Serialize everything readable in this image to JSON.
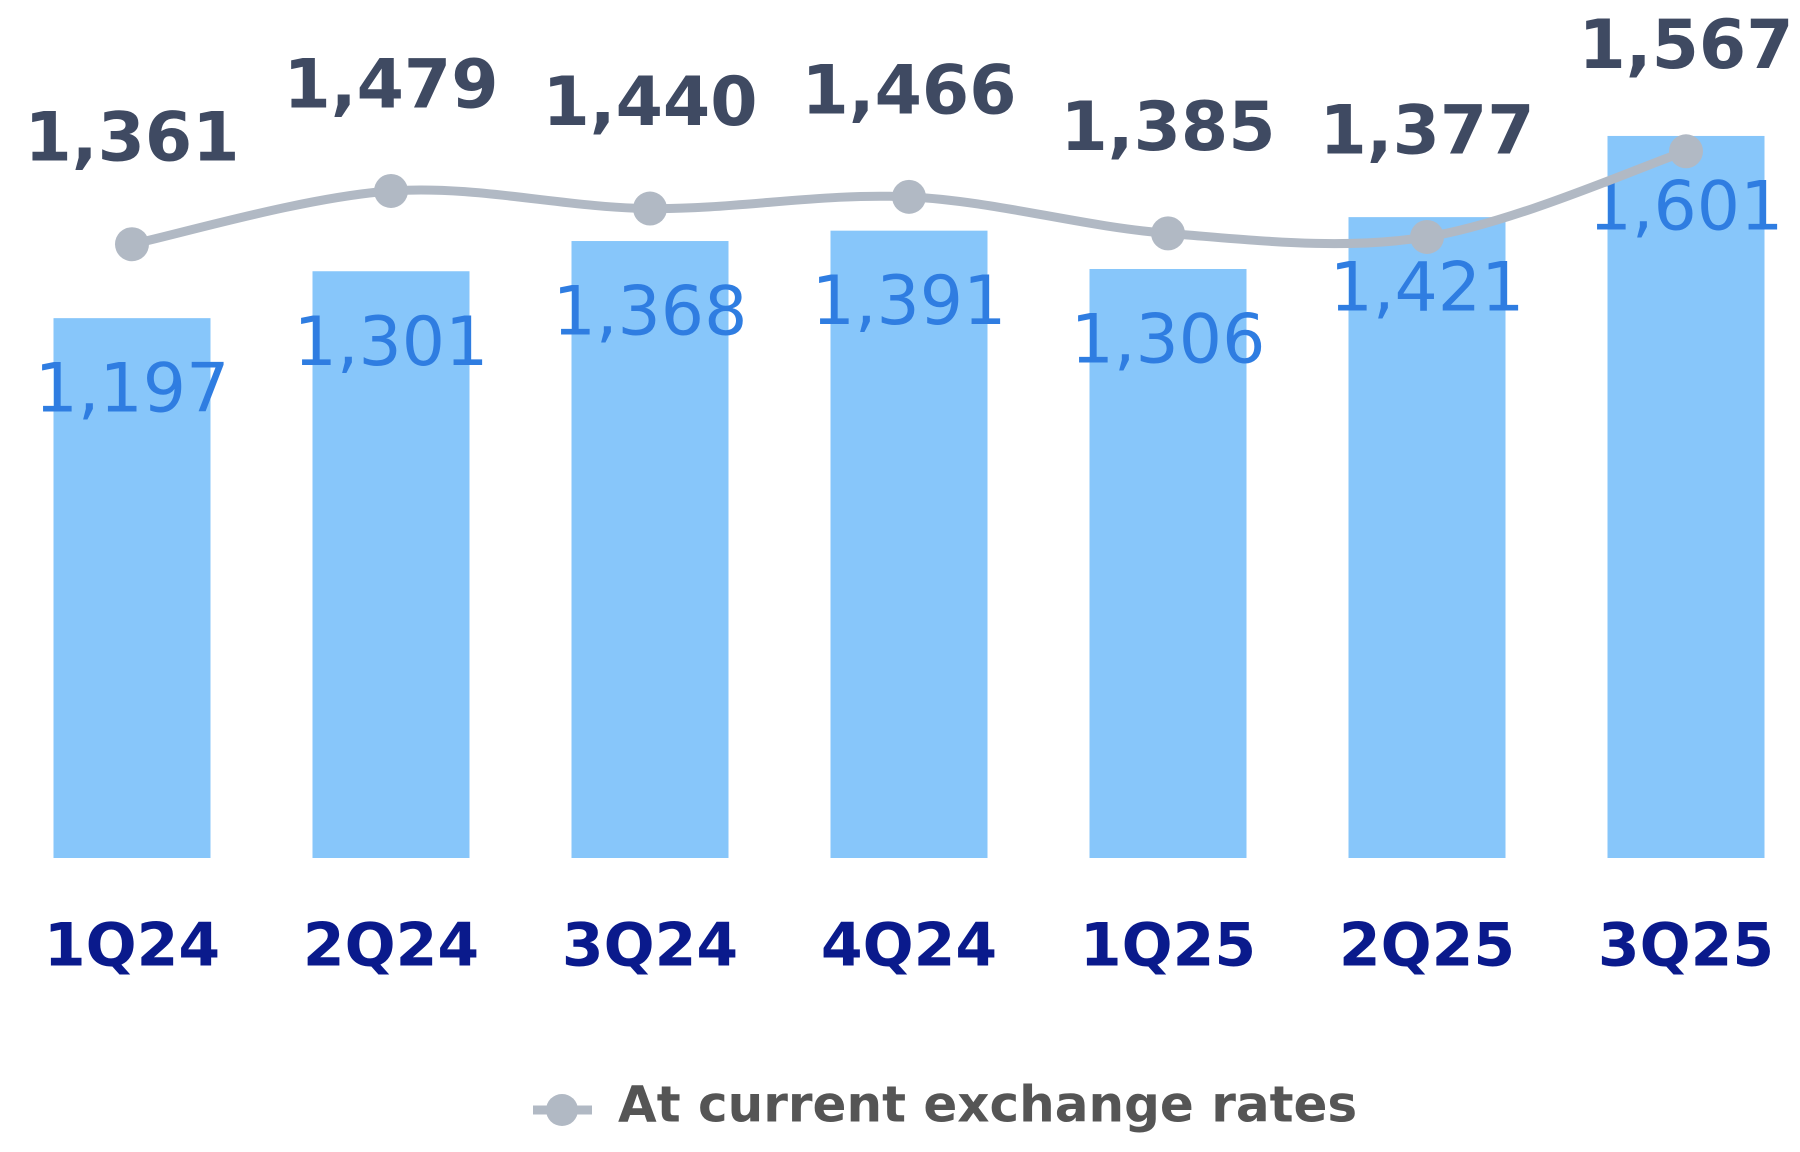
{
  "chart_data": {
    "type": "bar",
    "categories": [
      "1Q24",
      "2Q24",
      "3Q24",
      "4Q24",
      "1Q25",
      "2Q25",
      "3Q25"
    ],
    "series": [
      {
        "type": "bar",
        "color": "#87c6fa",
        "values": [
          1197,
          1301,
          1368,
          1391,
          1306,
          1421,
          1601
        ],
        "value_labels": [
          "1,197",
          "1,301",
          "1,368",
          "1,391",
          "1,306",
          "1,421",
          "1,601"
        ]
      },
      {
        "type": "line",
        "name": "At current exchange rates",
        "color": "#b1b9c4",
        "values": [
          1361,
          1479,
          1440,
          1466,
          1385,
          1377,
          1567
        ],
        "value_labels": [
          "1,361",
          "1,479",
          "1,440",
          "1,466",
          "1,385",
          "1,377",
          "1,567"
        ]
      }
    ],
    "legend": "bottom"
  }
}
